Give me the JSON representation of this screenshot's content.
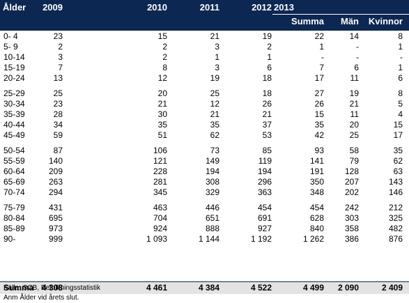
{
  "header": {
    "age_label": "Ålder",
    "years": [
      "2009",
      "2010",
      "2011",
      "2012",
      "2013"
    ],
    "sub": [
      "Summa",
      "Män",
      "Kvinnor"
    ]
  },
  "table": {
    "rows": [
      [
        "0- 4",
        "23",
        "15",
        "21",
        "19",
        "22",
        "14",
        "8"
      ],
      [
        "5- 9",
        "2",
        "2",
        "3",
        "2",
        "1",
        "-",
        "1"
      ],
      [
        "10-14",
        "3",
        "2",
        "1",
        "1",
        "-",
        "-",
        "-"
      ],
      [
        "15-19",
        "7",
        "8",
        "3",
        "6",
        "7",
        "6",
        "1"
      ],
      [
        "20-24",
        "13",
        "12",
        "19",
        "18",
        "17",
        "11",
        "6"
      ],
      [
        "25-29",
        "25",
        "20",
        "25",
        "18",
        "27",
        "19",
        "8"
      ],
      [
        "30-34",
        "23",
        "21",
        "12",
        "26",
        "26",
        "21",
        "5"
      ],
      [
        "35-39",
        "28",
        "30",
        "21",
        "21",
        "15",
        "11",
        "4"
      ],
      [
        "40-44",
        "34",
        "35",
        "35",
        "37",
        "35",
        "20",
        "15"
      ],
      [
        "45-49",
        "59",
        "51",
        "62",
        "53",
        "42",
        "25",
        "17"
      ],
      [
        "50-54",
        "87",
        "106",
        "73",
        "85",
        "93",
        "58",
        "35"
      ],
      [
        "55-59",
        "140",
        "121",
        "149",
        "119",
        "141",
        "79",
        "62"
      ],
      [
        "60-64",
        "209",
        "228",
        "194",
        "194",
        "191",
        "128",
        "63"
      ],
      [
        "65-69",
        "263",
        "281",
        "308",
        "296",
        "350",
        "207",
        "143"
      ],
      [
        "70-74",
        "294",
        "345",
        "329",
        "363",
        "348",
        "202",
        "146"
      ],
      [
        "75-79",
        "431",
        "463",
        "446",
        "454",
        "454",
        "242",
        "212"
      ],
      [
        "80-84",
        "695",
        "704",
        "651",
        "691",
        "628",
        "303",
        "325"
      ],
      [
        "85-89",
        "973",
        "924",
        "888",
        "927",
        "840",
        "358",
        "482"
      ],
      [
        "90-",
        "999",
        "1 093",
        "1 144",
        "1 192",
        "1 262",
        "386",
        "876"
      ]
    ],
    "summary": [
      "Summa",
      "4 308",
      "4 461",
      "4 384",
      "4 522",
      "4 499",
      "2 090",
      "2 409"
    ]
  },
  "footer": {
    "source": "Källa: SCB, Befolkningsstatistik",
    "note": "Anm Ålder vid årets slut."
  }
}
